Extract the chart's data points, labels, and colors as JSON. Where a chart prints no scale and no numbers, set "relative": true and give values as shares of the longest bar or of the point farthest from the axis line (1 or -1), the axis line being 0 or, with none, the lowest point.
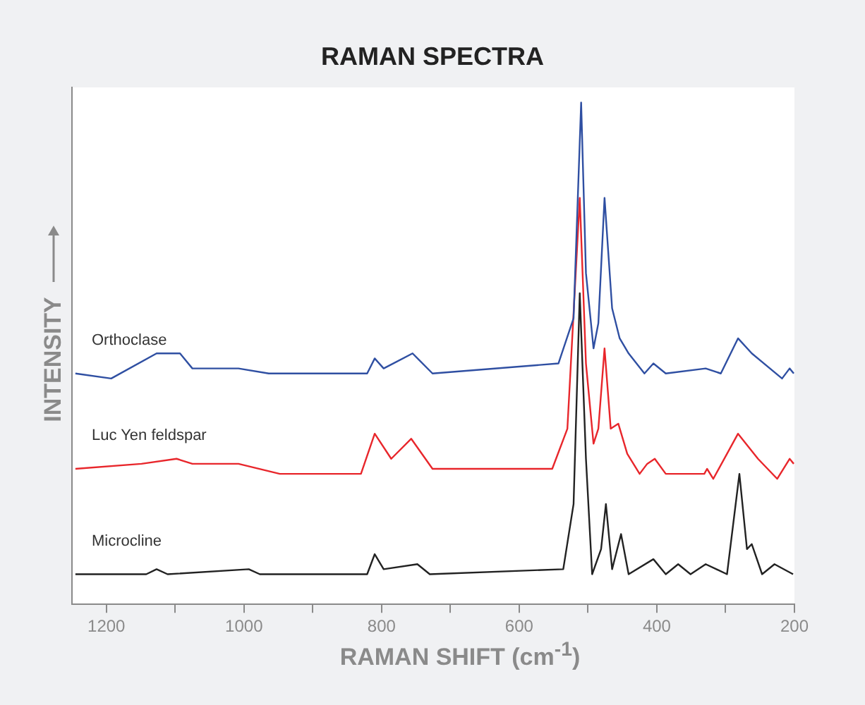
{
  "chart_data": {
    "type": "line",
    "title": "RAMAN SPECTRA",
    "xlabel": "RAMAN SHIFT (cm$^{-1}$)",
    "ylabel": "INTENSITY",
    "relative": true,
    "grid": false,
    "xlim": [
      1250,
      200
    ],
    "xticks": [
      1200,
      {
        "value": 1100,
        "label": null
      },
      1000,
      {
        "value": 900,
        "label": null
      },
      800,
      {
        "value": 700,
        "label": null
      },
      600,
      {
        "value": 500,
        "label": null
      },
      400,
      {
        "value": 300,
        "label": null
      },
      200
    ],
    "series": [
      {
        "name": "Orthoclase",
        "color": "#2f4fa2",
        "x": [
          1245,
          1193,
          1127,
          1093,
          1075,
          1008,
          964,
          821,
          810,
          797,
          755,
          726,
          543,
          521,
          510,
          503,
          492,
          485,
          476,
          465,
          454,
          441,
          418,
          405,
          387,
          329,
          307,
          282,
          262,
          218,
          207,
          201
        ],
        "values": [
          0.46,
          0.45,
          0.5,
          0.5,
          0.47,
          0.47,
          0.46,
          0.46,
          0.49,
          0.47,
          0.5,
          0.46,
          0.48,
          0.57,
          1.0,
          0.66,
          0.51,
          0.56,
          0.81,
          0.59,
          0.53,
          0.5,
          0.46,
          0.48,
          0.46,
          0.47,
          0.46,
          0.53,
          0.5,
          0.45,
          0.47,
          0.46
        ]
      },
      {
        "name": "Luc Yen feldspar",
        "color": "#e8262b",
        "x": [
          1245,
          1149,
          1098,
          1075,
          1008,
          948,
          830,
          810,
          786,
          757,
          726,
          552,
          530,
          512,
          503,
          492,
          485,
          476,
          467,
          456,
          443,
          425,
          414,
          403,
          387,
          331,
          327,
          318,
          282,
          253,
          225,
          207,
          201
        ],
        "values": [
          0.27,
          0.28,
          0.29,
          0.28,
          0.28,
          0.26,
          0.26,
          0.34,
          0.29,
          0.33,
          0.27,
          0.27,
          0.35,
          0.81,
          0.48,
          0.32,
          0.35,
          0.51,
          0.35,
          0.36,
          0.3,
          0.26,
          0.28,
          0.29,
          0.26,
          0.26,
          0.27,
          0.25,
          0.34,
          0.29,
          0.25,
          0.29,
          0.28
        ]
      },
      {
        "name": "Microcline",
        "color": "#222222",
        "x": [
          1245,
          1142,
          1127,
          1111,
          993,
          977,
          821,
          810,
          797,
          748,
          730,
          536,
          521,
          512,
          503,
          494,
          481,
          474,
          465,
          452,
          441,
          405,
          387,
          369,
          351,
          329,
          298,
          280,
          269,
          262,
          247,
          229,
          202
        ],
        "values": [
          0.06,
          0.06,
          0.07,
          0.06,
          0.07,
          0.06,
          0.06,
          0.1,
          0.07,
          0.08,
          0.06,
          0.07,
          0.2,
          0.62,
          0.29,
          0.06,
          0.11,
          0.2,
          0.07,
          0.14,
          0.06,
          0.09,
          0.06,
          0.08,
          0.06,
          0.08,
          0.06,
          0.26,
          0.11,
          0.12,
          0.06,
          0.08,
          0.06
        ]
      }
    ]
  }
}
